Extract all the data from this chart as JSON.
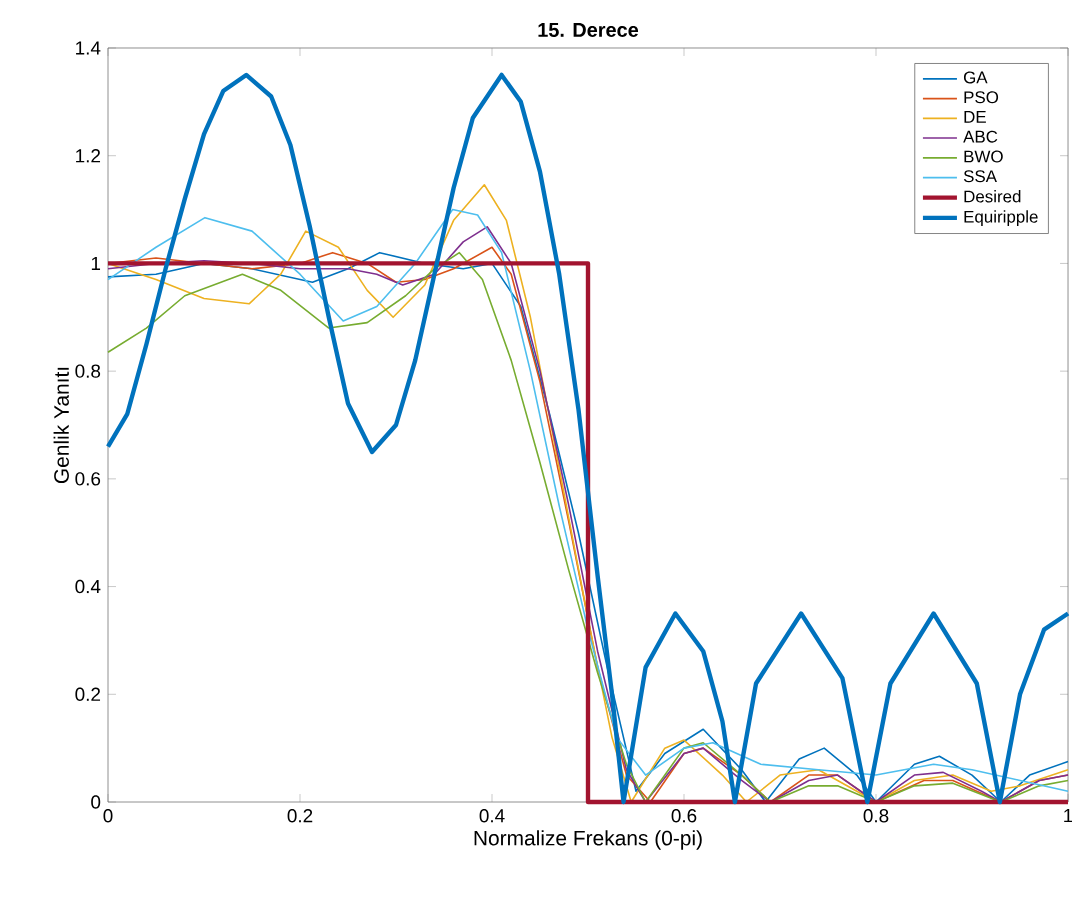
{
  "chart_data": {
    "type": "line",
    "title": "15. Derece",
    "xlabel": "Normalize Frekans (0-pi)",
    "ylabel": "Genlik Yanıtı",
    "xlim": [
      0,
      1
    ],
    "ylim": [
      0,
      1.4
    ],
    "xticks": [
      0,
      0.2,
      0.4,
      0.6,
      0.8,
      1
    ],
    "yticks": [
      0,
      0.2,
      0.4,
      0.6,
      0.8,
      1,
      1.2,
      1.4
    ],
    "grid": false,
    "legend": "top right",
    "marker": "none",
    "line_style": "solid",
    "series": [
      {
        "name": "GA",
        "color": "#0072bd",
        "x": [
          0,
          0.05,
          0.1,
          0.15,
          0.213,
          0.25,
          0.283,
          0.33,
          0.37,
          0.4,
          0.43,
          0.46,
          0.49,
          0.52,
          0.55,
          0.58,
          0.62,
          0.66,
          0.685,
          0.72,
          0.746,
          0.78,
          0.8,
          0.84,
          0.866,
          0.9,
          0.93,
          0.96,
          1.0
        ],
        "values": [
          0.975,
          0.98,
          1.0,
          0.99,
          0.965,
          0.99,
          1.02,
          1.0,
          0.99,
          1.0,
          0.92,
          0.72,
          0.5,
          0.25,
          0.02,
          0.09,
          0.135,
          0.06,
          0.0,
          0.08,
          0.1,
          0.05,
          0.0,
          0.07,
          0.085,
          0.05,
          0.0,
          0.05,
          0.075
        ]
      },
      {
        "name": "PSO",
        "color": "#d95319",
        "x": [
          0,
          0.05,
          0.1,
          0.15,
          0.2,
          0.234,
          0.27,
          0.3,
          0.33,
          0.36,
          0.4,
          0.42,
          0.45,
          0.48,
          0.51,
          0.54,
          0.565,
          0.6,
          0.62,
          0.66,
          0.69,
          0.73,
          0.76,
          0.8,
          0.85,
          0.88,
          0.93,
          0.97,
          1.0
        ],
        "values": [
          1.0,
          1.01,
          1.0,
          0.99,
          1.0,
          1.02,
          1.0,
          0.965,
          0.97,
          0.99,
          1.03,
          0.98,
          0.78,
          0.52,
          0.25,
          0.05,
          0.0,
          0.09,
          0.1,
          0.05,
          0.0,
          0.05,
          0.05,
          0.0,
          0.04,
          0.04,
          0.0,
          0.04,
          0.05
        ]
      },
      {
        "name": "DE",
        "color": "#edb120",
        "x": [
          0,
          0.05,
          0.1,
          0.147,
          0.18,
          0.206,
          0.24,
          0.27,
          0.297,
          0.33,
          0.36,
          0.392,
          0.415,
          0.44,
          0.47,
          0.5,
          0.525,
          0.545,
          0.58,
          0.6,
          0.64,
          0.665,
          0.7,
          0.74,
          0.78,
          0.8,
          0.84,
          0.88,
          0.92,
          0.95,
          1.0
        ],
        "values": [
          1.0,
          0.97,
          0.935,
          0.925,
          0.98,
          1.06,
          1.03,
          0.95,
          0.9,
          0.96,
          1.08,
          1.146,
          1.08,
          0.9,
          0.62,
          0.34,
          0.12,
          0.0,
          0.1,
          0.115,
          0.05,
          0.0,
          0.05,
          0.06,
          0.02,
          0.0,
          0.04,
          0.05,
          0.02,
          0.03,
          0.06
        ]
      },
      {
        "name": "ABC",
        "color": "#7e2f8e",
        "x": [
          0,
          0.05,
          0.1,
          0.15,
          0.2,
          0.25,
          0.28,
          0.307,
          0.34,
          0.37,
          0.395,
          0.42,
          0.45,
          0.48,
          0.51,
          0.54,
          0.56,
          0.6,
          0.62,
          0.66,
          0.69,
          0.73,
          0.76,
          0.8,
          0.84,
          0.87,
          0.91,
          0.93,
          0.97,
          1.0
        ],
        "values": [
          0.99,
          1.0,
          1.005,
          1.0,
          0.99,
          0.99,
          0.98,
          0.96,
          0.98,
          1.04,
          1.068,
          1.0,
          0.8,
          0.55,
          0.28,
          0.06,
          0.0,
          0.09,
          0.1,
          0.04,
          0.0,
          0.04,
          0.05,
          0.0,
          0.05,
          0.055,
          0.02,
          0.0,
          0.04,
          0.05
        ]
      },
      {
        "name": "BWO",
        "color": "#77ac30",
        "x": [
          0,
          0.04,
          0.08,
          0.14,
          0.18,
          0.23,
          0.27,
          0.31,
          0.34,
          0.366,
          0.39,
          0.42,
          0.45,
          0.48,
          0.51,
          0.54,
          0.56,
          0.6,
          0.62,
          0.66,
          0.69,
          0.73,
          0.76,
          0.8,
          0.84,
          0.88,
          0.93,
          0.97,
          1.0
        ],
        "values": [
          0.835,
          0.88,
          0.94,
          0.98,
          0.95,
          0.88,
          0.89,
          0.94,
          0.99,
          1.02,
          0.97,
          0.82,
          0.63,
          0.43,
          0.24,
          0.07,
          0.0,
          0.1,
          0.11,
          0.05,
          0.0,
          0.03,
          0.03,
          0.0,
          0.03,
          0.035,
          0.0,
          0.03,
          0.04
        ]
      },
      {
        "name": "SSA",
        "color": "#4dbeee",
        "x": [
          0,
          0.05,
          0.101,
          0.15,
          0.2,
          0.245,
          0.28,
          0.32,
          0.359,
          0.385,
          0.41,
          0.44,
          0.47,
          0.5,
          0.53,
          0.56,
          0.6,
          0.63,
          0.68,
          0.74,
          0.8,
          0.86,
          0.9,
          0.95,
          1.0
        ],
        "values": [
          0.97,
          1.03,
          1.085,
          1.06,
          0.98,
          0.893,
          0.92,
          1.0,
          1.1,
          1.09,
          1.02,
          0.8,
          0.55,
          0.32,
          0.12,
          0.05,
          0.1,
          0.11,
          0.07,
          0.06,
          0.05,
          0.07,
          0.06,
          0.04,
          0.02
        ]
      },
      {
        "name": "Desired",
        "color": "#a2142f",
        "x": [
          0,
          0.5,
          0.5,
          1
        ],
        "values": [
          1,
          1,
          0,
          0
        ]
      },
      {
        "name": "Equiripple",
        "color": "#0072bd",
        "x": [
          0,
          0.02,
          0.04,
          0.06,
          0.08,
          0.1,
          0.12,
          0.144,
          0.17,
          0.19,
          0.21,
          0.23,
          0.25,
          0.275,
          0.3,
          0.32,
          0.34,
          0.36,
          0.38,
          0.41,
          0.43,
          0.45,
          0.47,
          0.49,
          0.51,
          0.525,
          0.537,
          0.56,
          0.591,
          0.62,
          0.64,
          0.653,
          0.675,
          0.722,
          0.765,
          0.791,
          0.815,
          0.86,
          0.905,
          0.929,
          0.95,
          0.975,
          1.0
        ],
        "values": [
          0.66,
          0.72,
          0.85,
          0.99,
          1.12,
          1.24,
          1.32,
          1.35,
          1.31,
          1.22,
          1.07,
          0.9,
          0.74,
          0.65,
          0.7,
          0.82,
          0.98,
          1.14,
          1.27,
          1.35,
          1.3,
          1.17,
          0.98,
          0.73,
          0.42,
          0.2,
          0,
          0.25,
          0.35,
          0.28,
          0.15,
          0,
          0.22,
          0.35,
          0.23,
          0,
          0.22,
          0.35,
          0.22,
          0,
          0.2,
          0.32,
          0.35
        ]
      }
    ]
  }
}
